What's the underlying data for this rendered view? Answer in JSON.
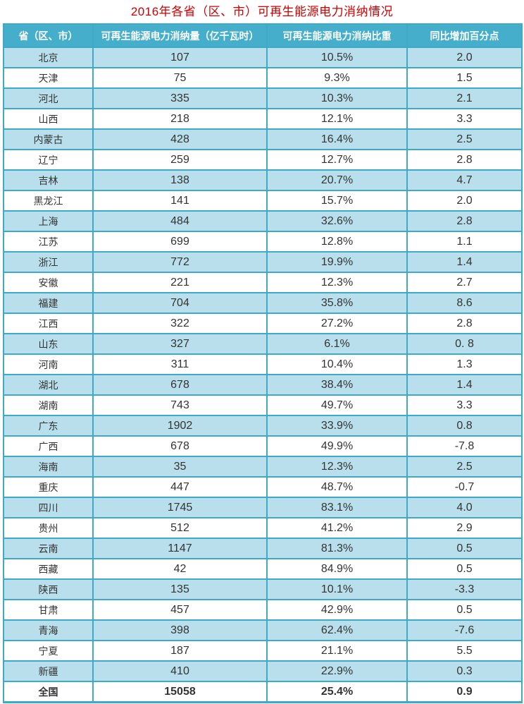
{
  "title": "2016年各省（区、市）可再生能源电力消纳情况",
  "colors": {
    "title_text": "#cc0000",
    "header_bg": "#45aecb",
    "border": "#3fa9c8",
    "row_alt_bg": "#b9dfec",
    "row_bg": "#ffffff",
    "body_text": "#333333",
    "header_text": "#ffffff"
  },
  "chart_data": {
    "type": "table",
    "title": "2016年各省（区、市）可再生能源电力消纳情况",
    "columns": [
      "省（区、市）",
      "可再生能源电力消纳量（亿千瓦时）",
      "可再生能源电力消纳比重",
      "同比增加百分点"
    ],
    "rows": [
      {
        "province": "北京",
        "consumption": "107",
        "share": "10.5%",
        "change": "2.0"
      },
      {
        "province": "天津",
        "consumption": "75",
        "share": "9.3%",
        "change": "1.5"
      },
      {
        "province": "河北",
        "consumption": "335",
        "share": "10.3%",
        "change": "2.1"
      },
      {
        "province": "山西",
        "consumption": "218",
        "share": "12.1%",
        "change": "3.3"
      },
      {
        "province": "内蒙古",
        "consumption": "428",
        "share": "16.4%",
        "change": "2.5"
      },
      {
        "province": "辽宁",
        "consumption": "259",
        "share": "12.7%",
        "change": "2.8"
      },
      {
        "province": "吉林",
        "consumption": "138",
        "share": "20.7%",
        "change": "4.7"
      },
      {
        "province": "黑龙江",
        "consumption": "141",
        "share": "15.7%",
        "change": "2.0"
      },
      {
        "province": "上海",
        "consumption": "484",
        "share": "32.6%",
        "change": "2.8"
      },
      {
        "province": "江苏",
        "consumption": "699",
        "share": "12.8%",
        "change": "1.1"
      },
      {
        "province": "浙江",
        "consumption": "772",
        "share": "19.9%",
        "change": "1.4"
      },
      {
        "province": "安徽",
        "consumption": "221",
        "share": "12.3%",
        "change": "2.7"
      },
      {
        "province": "福建",
        "consumption": "704",
        "share": "35.8%",
        "change": "8.6"
      },
      {
        "province": "江西",
        "consumption": "322",
        "share": "27.2%",
        "change": "2.8"
      },
      {
        "province": "山东",
        "consumption": "327",
        "share": "6.1%",
        "change": "0. 8"
      },
      {
        "province": "河南",
        "consumption": "311",
        "share": "10.4%",
        "change": "1.3"
      },
      {
        "province": "湖北",
        "consumption": "678",
        "share": "38.4%",
        "change": "1.4"
      },
      {
        "province": "湖南",
        "consumption": "743",
        "share": "49.7%",
        "change": "3.3"
      },
      {
        "province": "广东",
        "consumption": "1902",
        "share": "33.9%",
        "change": "0.8"
      },
      {
        "province": "广西",
        "consumption": "678",
        "share": "49.9%",
        "change": "-7.8"
      },
      {
        "province": "海南",
        "consumption": "35",
        "share": "12.3%",
        "change": "2.5"
      },
      {
        "province": "重庆",
        "consumption": "447",
        "share": "48.7%",
        "change": "-0.7"
      },
      {
        "province": "四川",
        "consumption": "1745",
        "share": "83.1%",
        "change": "4.0"
      },
      {
        "province": "贵州",
        "consumption": "512",
        "share": "41.2%",
        "change": "2.9"
      },
      {
        "province": "云南",
        "consumption": "1147",
        "share": "81.3%",
        "change": "0.5"
      },
      {
        "province": "西藏",
        "consumption": "42",
        "share": "84.9%",
        "change": "0.5"
      },
      {
        "province": "陕西",
        "consumption": "135",
        "share": "10.1%",
        "change": "-3.3"
      },
      {
        "province": "甘肃",
        "consumption": "457",
        "share": "42.9%",
        "change": "0.5"
      },
      {
        "province": "青海",
        "consumption": "398",
        "share": "62.4%",
        "change": "-7.6"
      },
      {
        "province": "宁夏",
        "consumption": "187",
        "share": "21.1%",
        "change": "5.5"
      },
      {
        "province": "新疆",
        "consumption": "410",
        "share": "22.9%",
        "change": "0.3"
      }
    ],
    "total_row": {
      "province": "全国",
      "consumption": "15058",
      "share": "25.4%",
      "change": "0.9"
    }
  }
}
